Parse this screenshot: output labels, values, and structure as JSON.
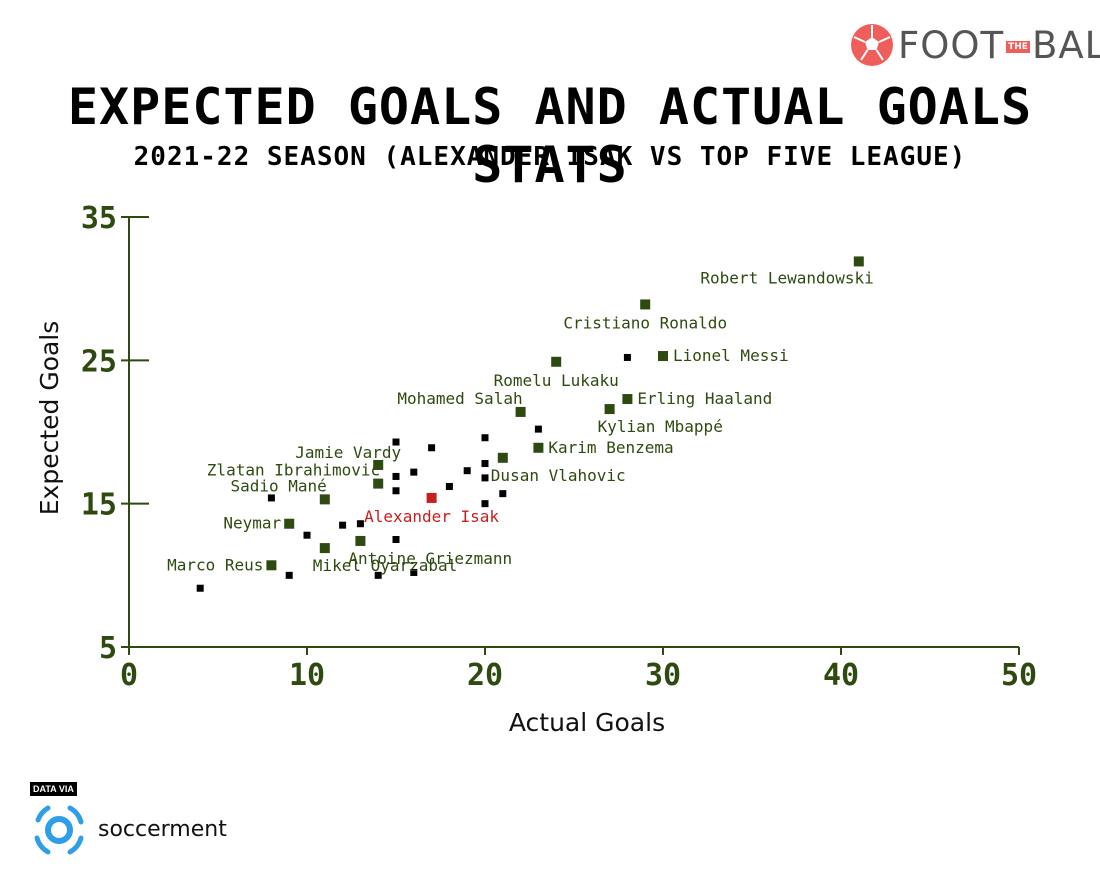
{
  "brand": {
    "word_left": "FOOT",
    "word_mid": "THE",
    "word_right": "BALL",
    "icon": "soccer-ball-icon",
    "color": "#ee5f5b"
  },
  "title": "EXPECTED GOALS AND ACTUAL GOALS STATS",
  "subtitle": "2021-22 SEASON (ALEXANDER ISAK VS TOP FIVE LEAGUE)",
  "source": {
    "prefix": "DATA VIA",
    "name": "soccerment",
    "icon": "soccerment-logo-icon",
    "color": "#2e9ee8"
  },
  "colors": {
    "axis": "#2e4a10",
    "named_point": "#2e4a10",
    "highlight": "#c81e1e",
    "other_point": "#000000"
  },
  "chart_data": {
    "type": "scatter",
    "title": "EXPECTED GOALS AND ACTUAL GOALS STATS",
    "subtitle": "2021-22 SEASON (ALEXANDER ISAK VS TOP FIVE LEAGUE)",
    "xlabel": "Actual Goals",
    "ylabel": "Expected Goals",
    "xlim": [
      0,
      50
    ],
    "ylim": [
      5,
      35
    ],
    "xticks": [
      0,
      10,
      20,
      30,
      40,
      50
    ],
    "yticks": [
      5,
      15,
      25,
      35
    ],
    "grid": false,
    "named_points": [
      {
        "name": "Robert Lewandowski",
        "x": 41,
        "y": 31.9,
        "anchor": "below-left"
      },
      {
        "name": "Cristiano Ronaldo",
        "x": 29,
        "y": 28.9,
        "anchor": "below"
      },
      {
        "name": "Lionel Messi",
        "x": 30,
        "y": 25.3,
        "anchor": "right"
      },
      {
        "name": "Romelu Lukaku",
        "x": 24,
        "y": 24.9,
        "anchor": "below"
      },
      {
        "name": "Erling Haaland",
        "x": 28,
        "y": 22.3,
        "anchor": "right"
      },
      {
        "name": "Mohamed Salah",
        "x": 22,
        "y": 21.4,
        "anchor": "above-left"
      },
      {
        "name": "Kylian Mbappé",
        "x": 27,
        "y": 21.6,
        "anchor": "below-right"
      },
      {
        "name": "Karim Benzema",
        "x": 23,
        "y": 18.9,
        "anchor": "right"
      },
      {
        "name": "Jamie Vardy",
        "x": 14,
        "y": 17.7,
        "anchor": "above"
      },
      {
        "name": "Dusan Vlahovic",
        "x": 21,
        "y": 18.2,
        "anchor": "below-right"
      },
      {
        "name": "Zlatan Ibrahimovic",
        "x": 14,
        "y": 16.4,
        "anchor": "above-left"
      },
      {
        "name": "Sadio Mané",
        "x": 11,
        "y": 15.3,
        "anchor": "above-left"
      },
      {
        "name": "Neymar",
        "x": 9,
        "y": 13.6,
        "anchor": "left"
      },
      {
        "name": "Antoine Griezmann",
        "x": 13,
        "y": 12.4,
        "anchor": "below-right"
      },
      {
        "name": "Marco Reus",
        "x": 8,
        "y": 10.7,
        "anchor": "left"
      },
      {
        "name": "Mikel Oyarzabal",
        "x": 11,
        "y": 11.9,
        "anchor": "below-right"
      }
    ],
    "highlight": {
      "name": "Alexander Isak",
      "x": 17,
      "y": 15.4,
      "anchor": "below"
    },
    "other_points": [
      {
        "x": 4,
        "y": 9.1
      },
      {
        "x": 8,
        "y": 15.4
      },
      {
        "x": 9,
        "y": 10
      },
      {
        "x": 10,
        "y": 12.8
      },
      {
        "x": 12,
        "y": 13.5
      },
      {
        "x": 13,
        "y": 13.6
      },
      {
        "x": 14,
        "y": 10
      },
      {
        "x": 15,
        "y": 19.3
      },
      {
        "x": 15,
        "y": 16.9
      },
      {
        "x": 15,
        "y": 15.9
      },
      {
        "x": 15,
        "y": 12.5
      },
      {
        "x": 16,
        "y": 17.2
      },
      {
        "x": 16,
        "y": 10.2
      },
      {
        "x": 17,
        "y": 18.9
      },
      {
        "x": 18,
        "y": 16.2
      },
      {
        "x": 19,
        "y": 17.3
      },
      {
        "x": 20,
        "y": 19.6
      },
      {
        "x": 20,
        "y": 17.8
      },
      {
        "x": 20,
        "y": 16.8
      },
      {
        "x": 20,
        "y": 15
      },
      {
        "x": 21,
        "y": 15.7
      },
      {
        "x": 23,
        "y": 20.2
      },
      {
        "x": 28,
        "y": 25.2
      }
    ]
  }
}
